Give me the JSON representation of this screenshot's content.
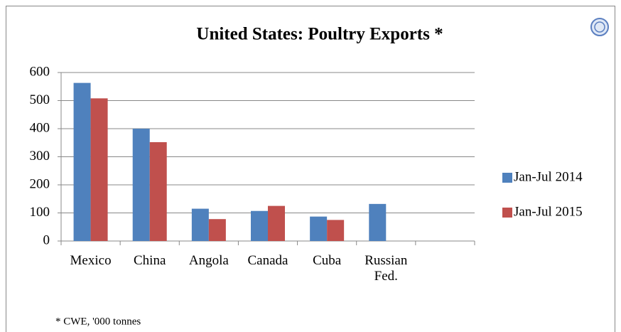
{
  "chart_data": {
    "type": "bar",
    "title": "United States: Poultry Exports *",
    "footnote": "* CWE, '000 tonnes",
    "categories": [
      "Mexico",
      "China",
      "Angola",
      "Canada",
      "Cuba",
      "Russian Fed.",
      null
    ],
    "series": [
      {
        "name": "Jan-Jul 2014",
        "color": "#4f81bd",
        "values": [
          563,
          400,
          115,
          107,
          87,
          132,
          null
        ]
      },
      {
        "name": "Jan-Jul 2015",
        "color": "#c0504d",
        "values": [
          508,
          352,
          78,
          125,
          75,
          null,
          null
        ]
      }
    ],
    "ylim": [
      0,
      600
    ],
    "yticks": [
      0,
      100,
      200,
      300,
      400,
      500,
      600
    ],
    "grid": true,
    "legend": "right"
  }
}
